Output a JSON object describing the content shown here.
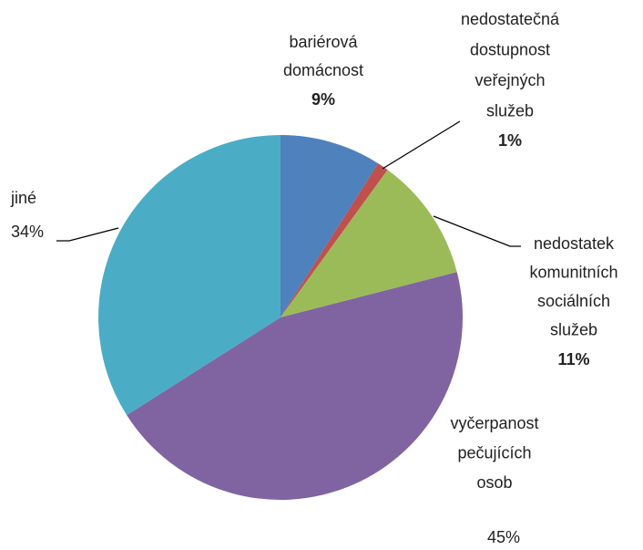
{
  "chart_data": {
    "type": "pie",
    "categories": [
      [
        "bariérová",
        "domácnost"
      ],
      [
        "nedostatečná",
        "dostupnost",
        "veřejných",
        "služeb"
      ],
      [
        "nedostatek",
        "komunitních",
        "sociálních",
        "služeb"
      ],
      [
        "vyčerpanost",
        "pečujících",
        "osob"
      ],
      [
        "jiné"
      ]
    ],
    "values": [
      9,
      1,
      11,
      45,
      34
    ],
    "value_labels": [
      "9%",
      "1%",
      "11%",
      "45%",
      "34%"
    ],
    "colors": [
      "#4f81bd",
      "#c0504d",
      "#9bbb59",
      "#8064a2",
      "#4bacc6"
    ]
  }
}
